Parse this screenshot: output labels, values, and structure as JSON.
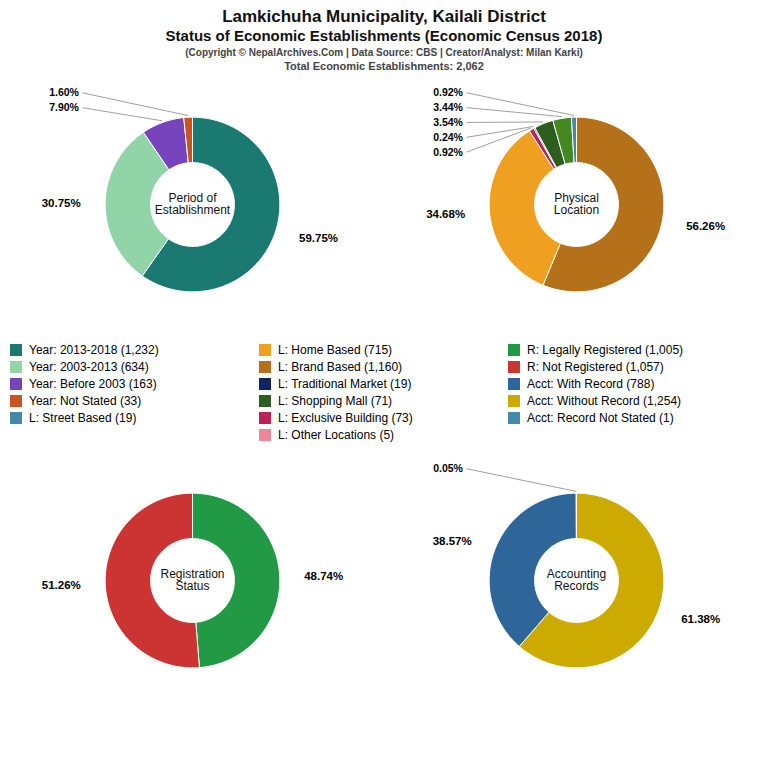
{
  "title": [
    "Lamkichuha Municipality, Kailali District",
    "Status of Economic Establishments (Economic Census 2018)"
  ],
  "subtitle": [
    "(Copyright © NepalArchives.Com | Data Source: CBS | Creator/Analyst: Milan Karki)",
    "Total Economic Establishments: 2,062"
  ],
  "chart_data": [
    {
      "type": "pie",
      "title": "Period of\nEstablishment",
      "values": [
        59.75,
        30.75,
        7.9,
        1.6
      ],
      "value_labels": [
        "59.75%",
        "30.75%",
        "7.90%",
        "1.60%"
      ],
      "colors": [
        "#1a7a72",
        "#90d4a8",
        "#7744bb",
        "#c85520"
      ],
      "data_labels": true
    },
    {
      "type": "pie",
      "title": "Physical\nLocation",
      "values": [
        56.26,
        34.68,
        0.92,
        0.24,
        3.54,
        3.44,
        0.92
      ],
      "value_labels": [
        "56.26%",
        "34.68%",
        "0.92%",
        "0.24%",
        "3.54%",
        "3.44%",
        "0.92%"
      ],
      "colors": [
        "#b5701a",
        "#f0a020",
        "#bb2255",
        "#112266",
        "#2d5e20",
        "#448822",
        "#4488aa"
      ],
      "data_labels": true
    },
    {
      "type": "pie",
      "title": "Registration\nStatus",
      "values": [
        48.74,
        51.26
      ],
      "value_labels": [
        "48.74%",
        "51.26%"
      ],
      "colors": [
        "#229944",
        "#cc3333"
      ],
      "data_labels": true
    },
    {
      "type": "pie",
      "title": "Accounting\nRecords",
      "values": [
        61.38,
        38.57,
        0.05
      ],
      "value_labels": [
        "61.38%",
        "38.57%",
        "0.05%"
      ],
      "colors": [
        "#ccaa00",
        "#2e6699",
        "#4488aa"
      ],
      "data_labels": true
    }
  ],
  "series": [
    {
      "name": "Year: 2013-2018 (1,232)",
      "color": "#1a7a72"
    },
    {
      "name": "Year: 2003-2013 (634)",
      "color": "#90d4a8"
    },
    {
      "name": "Year: Before 2003 (163)",
      "color": "#7744bb"
    },
    {
      "name": "Year: Not Stated (33)",
      "color": "#c85520"
    },
    {
      "name": "L: Street Based (19)",
      "color": "#4488aa"
    },
    {
      "name": "L: Home Based (715)",
      "color": "#f0a020"
    },
    {
      "name": "L: Brand Based (1,160)",
      "color": "#b5701a"
    },
    {
      "name": "L: Traditional Market (19)",
      "color": "#112266"
    },
    {
      "name": "L: Shopping Mall (71)",
      "color": "#2d5e20"
    },
    {
      "name": "L: Exclusive Building (73)",
      "color": "#bb2255"
    },
    {
      "name": "L: Other Locations (5)",
      "color": "#ee8899"
    },
    {
      "name": "R: Legally Registered (1,005)",
      "color": "#229944"
    },
    {
      "name": "R: Not Registered (1,057)",
      "color": "#cc3333"
    },
    {
      "name": "Acct: With Record (788)",
      "color": "#2e6699"
    },
    {
      "name": "Acct: Without Record (1,254)",
      "color": "#ccaa00"
    },
    {
      "name": "Acct: Record Not Stated (1)",
      "color": "#4488aa"
    }
  ]
}
